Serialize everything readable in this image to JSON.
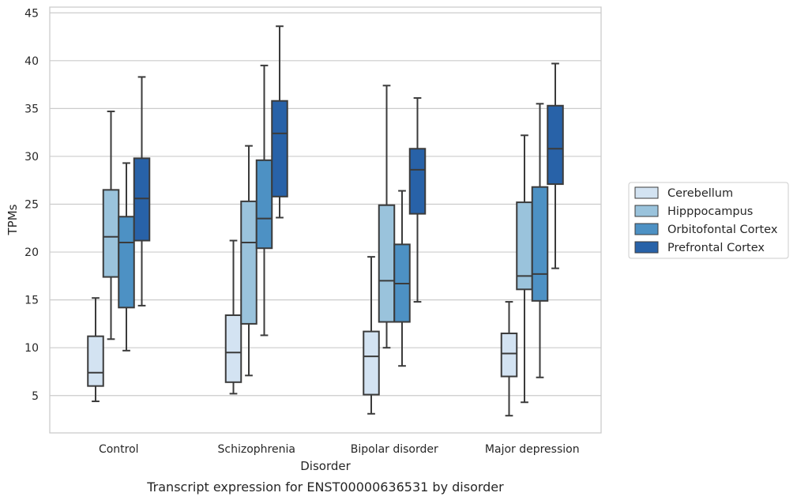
{
  "chart_data": {
    "type": "box",
    "title": "",
    "caption": "Transcript expression for ENST00000636531 by disorder",
    "xlabel": "Disorder",
    "ylabel": "TPMs",
    "ylim": [
      1.1,
      45.6
    ],
    "yticks": [
      5,
      10,
      15,
      20,
      25,
      30,
      35,
      40,
      45
    ],
    "grid": "horizontal",
    "legend_position": "right",
    "categories": [
      "Control",
      "Schizophrenia",
      "Bipolar disorder",
      "Major depression"
    ],
    "series": [
      {
        "name": "Cerebellum",
        "color": "#d3e3f2",
        "boxes": [
          {
            "whisker_low": 4.4,
            "q1": 6.0,
            "median": 7.4,
            "q3": 11.2,
            "whisker_high": 15.2
          },
          {
            "whisker_low": 5.2,
            "q1": 6.4,
            "median": 9.5,
            "q3": 13.4,
            "whisker_high": 21.2
          },
          {
            "whisker_low": 3.1,
            "q1": 5.1,
            "median": 9.1,
            "q3": 11.7,
            "whisker_high": 19.5
          },
          {
            "whisker_low": 2.9,
            "q1": 7.0,
            "median": 9.4,
            "q3": 11.5,
            "whisker_high": 14.8
          }
        ]
      },
      {
        "name": "Hipppocampus",
        "color": "#9ac3dc",
        "boxes": [
          {
            "whisker_low": 10.9,
            "q1": 17.4,
            "median": 21.6,
            "q3": 26.5,
            "whisker_high": 34.7
          },
          {
            "whisker_low": 7.1,
            "q1": 12.5,
            "median": 21.0,
            "q3": 25.3,
            "whisker_high": 31.1
          },
          {
            "whisker_low": 10.0,
            "q1": 12.7,
            "median": 17.0,
            "q3": 24.9,
            "whisker_high": 37.4
          },
          {
            "whisker_low": 4.3,
            "q1": 16.1,
            "median": 17.5,
            "q3": 25.2,
            "whisker_high": 32.2
          }
        ]
      },
      {
        "name": "Orbitofontal Cortex",
        "color": "#4d91c4",
        "boxes": [
          {
            "whisker_low": 9.7,
            "q1": 14.2,
            "median": 21.0,
            "q3": 23.7,
            "whisker_high": 29.3
          },
          {
            "whisker_low": 11.3,
            "q1": 20.4,
            "median": 23.5,
            "q3": 29.6,
            "whisker_high": 39.5
          },
          {
            "whisker_low": 8.1,
            "q1": 12.7,
            "median": 16.7,
            "q3": 20.8,
            "whisker_high": 26.4
          },
          {
            "whisker_low": 6.9,
            "q1": 14.9,
            "median": 17.7,
            "q3": 26.8,
            "whisker_high": 35.5
          }
        ]
      },
      {
        "name": "Prefrontal Cortex",
        "color": "#2862a8",
        "boxes": [
          {
            "whisker_low": 14.4,
            "q1": 21.2,
            "median": 25.6,
            "q3": 29.8,
            "whisker_high": 38.3
          },
          {
            "whisker_low": 23.6,
            "q1": 25.8,
            "median": 32.4,
            "q3": 35.8,
            "whisker_high": 43.6
          },
          {
            "whisker_low": 14.8,
            "q1": 24.0,
            "median": 28.6,
            "q3": 30.8,
            "whisker_high": 36.1
          },
          {
            "whisker_low": 18.3,
            "q1": 27.1,
            "median": 30.8,
            "q3": 35.3,
            "whisker_high": 39.7
          }
        ]
      }
    ]
  }
}
